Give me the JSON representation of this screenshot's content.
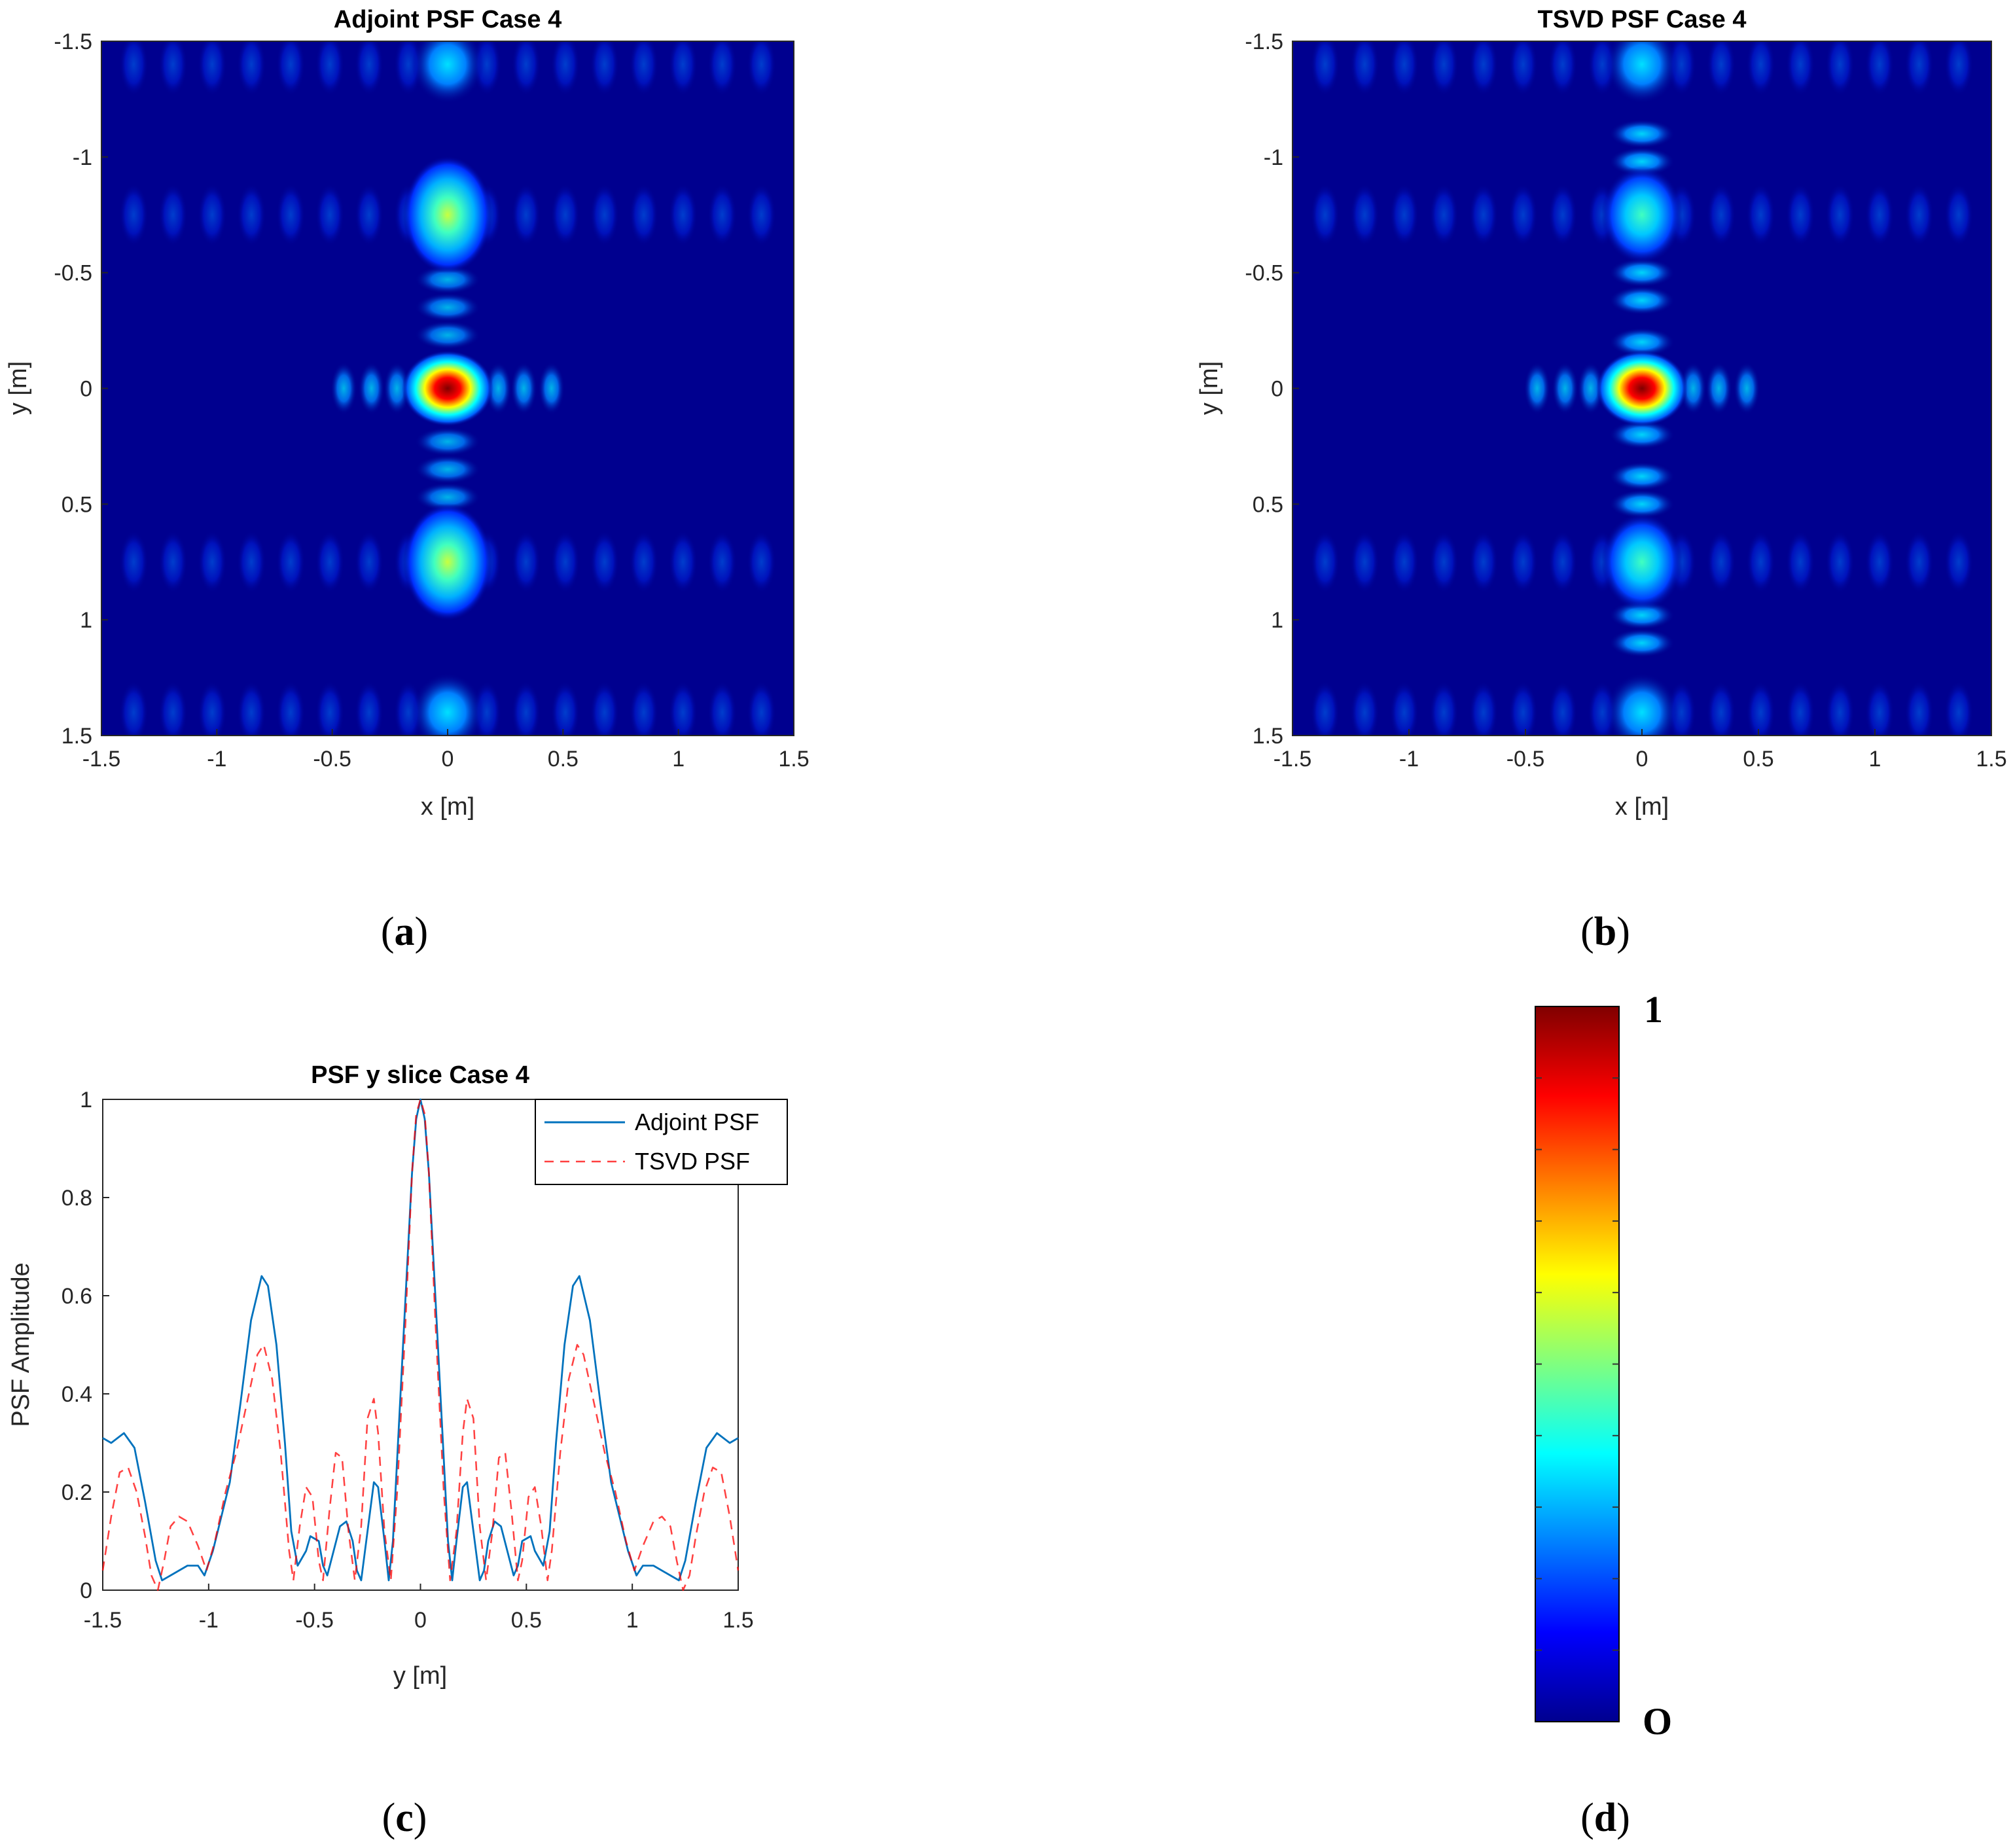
{
  "chart_data": [
    {
      "panel": "a",
      "type": "heatmap",
      "title": "Adjoint PSF Case 4",
      "xlabel": "x [m]",
      "ylabel": "y [m]",
      "xlim": [
        -1.5,
        1.5
      ],
      "ylim": [
        -1.5,
        1.5
      ],
      "xticks": [
        "-1.5",
        "-1",
        "-0.5",
        "0",
        "0.5",
        "1",
        "1.5"
      ],
      "yticks": [
        "-1.5",
        "-1",
        "-0.5",
        "0",
        "0.5",
        "1",
        "1.5"
      ],
      "colormap": "jet",
      "peaks": [
        {
          "x": 0,
          "y": 0,
          "value": 1.0
        },
        {
          "x": 0,
          "y": -0.75,
          "value": 0.64
        },
        {
          "x": 0,
          "y": 0.75,
          "value": 0.64
        },
        {
          "x": 0,
          "y": -1.4,
          "value": 0.32
        },
        {
          "x": 0,
          "y": 1.4,
          "value": 0.32
        }
      ]
    },
    {
      "panel": "b",
      "type": "heatmap",
      "title": "TSVD PSF Case 4",
      "xlabel": "x [m]",
      "ylabel": "y [m]",
      "xlim": [
        -1.5,
        1.5
      ],
      "ylim": [
        -1.5,
        1.5
      ],
      "xticks": [
        "-1.5",
        "-1",
        "-0.5",
        "0",
        "0.5",
        "1",
        "1.5"
      ],
      "yticks": [
        "-1.5",
        "-1",
        "-0.5",
        "0",
        "0.5",
        "1",
        "1.5"
      ],
      "colormap": "jet",
      "peaks": [
        {
          "x": 0,
          "y": 0,
          "value": 1.0
        },
        {
          "x": 0,
          "y": -0.75,
          "value": 0.5
        },
        {
          "x": 0,
          "y": 0.75,
          "value": 0.5
        },
        {
          "x": 0,
          "y": -1.4,
          "value": 0.25
        },
        {
          "x": 0,
          "y": 1.4,
          "value": 0.25
        }
      ]
    },
    {
      "panel": "c",
      "type": "line",
      "title": "PSF y slice Case 4",
      "xlabel": "y [m]",
      "ylabel": "PSF Amplitude",
      "xlim": [
        -1.5,
        1.5
      ],
      "ylim": [
        0,
        1
      ],
      "xticks": [
        "-1.5",
        "-1",
        "-0.5",
        "0",
        "0.5",
        "1",
        "1.5"
      ],
      "yticks": [
        "0",
        "0.2",
        "0.4",
        "0.6",
        "0.8",
        "1"
      ],
      "legend_position": "top-right",
      "series": [
        {
          "name": "Adjoint PSF",
          "color": "#0072BD",
          "style": "solid",
          "points": [
            [
              -1.5,
              0.31
            ],
            [
              -1.46,
              0.3
            ],
            [
              -1.4,
              0.32
            ],
            [
              -1.35,
              0.29
            ],
            [
              -1.3,
              0.18
            ],
            [
              -1.25,
              0.06
            ],
            [
              -1.22,
              0.02
            ],
            [
              -1.18,
              0.03
            ],
            [
              -1.1,
              0.05
            ],
            [
              -1.05,
              0.05
            ],
            [
              -1.02,
              0.03
            ],
            [
              -0.98,
              0.08
            ],
            [
              -0.9,
              0.22
            ],
            [
              -0.85,
              0.38
            ],
            [
              -0.8,
              0.55
            ],
            [
              -0.75,
              0.64
            ],
            [
              -0.72,
              0.62
            ],
            [
              -0.68,
              0.5
            ],
            [
              -0.64,
              0.3
            ],
            [
              -0.61,
              0.12
            ],
            [
              -0.58,
              0.05
            ],
            [
              -0.54,
              0.08
            ],
            [
              -0.52,
              0.11
            ],
            [
              -0.48,
              0.1
            ],
            [
              -0.46,
              0.05
            ],
            [
              -0.44,
              0.03
            ],
            [
              -0.41,
              0.08
            ],
            [
              -0.38,
              0.13
            ],
            [
              -0.35,
              0.14
            ],
            [
              -0.32,
              0.1
            ],
            [
              -0.3,
              0.04
            ],
            [
              -0.28,
              0.02
            ],
            [
              -0.25,
              0.12
            ],
            [
              -0.22,
              0.22
            ],
            [
              -0.2,
              0.21
            ],
            [
              -0.17,
              0.1
            ],
            [
              -0.15,
              0.02
            ],
            [
              -0.13,
              0.1
            ],
            [
              -0.1,
              0.35
            ],
            [
              -0.07,
              0.6
            ],
            [
              -0.04,
              0.85
            ],
            [
              -0.02,
              0.96
            ],
            [
              0,
              1.0
            ],
            [
              0.02,
              0.96
            ],
            [
              0.04,
              0.85
            ],
            [
              0.07,
              0.6
            ],
            [
              0.1,
              0.35
            ],
            [
              0.13,
              0.1
            ],
            [
              0.15,
              0.02
            ],
            [
              0.17,
              0.1
            ],
            [
              0.2,
              0.21
            ],
            [
              0.22,
              0.22
            ],
            [
              0.25,
              0.12
            ],
            [
              0.28,
              0.02
            ],
            [
              0.3,
              0.04
            ],
            [
              0.32,
              0.1
            ],
            [
              0.35,
              0.14
            ],
            [
              0.38,
              0.13
            ],
            [
              0.41,
              0.08
            ],
            [
              0.44,
              0.03
            ],
            [
              0.46,
              0.05
            ],
            [
              0.48,
              0.1
            ],
            [
              0.52,
              0.11
            ],
            [
              0.54,
              0.08
            ],
            [
              0.58,
              0.05
            ],
            [
              0.61,
              0.12
            ],
            [
              0.64,
              0.3
            ],
            [
              0.68,
              0.5
            ],
            [
              0.72,
              0.62
            ],
            [
              0.75,
              0.64
            ],
            [
              0.8,
              0.55
            ],
            [
              0.85,
              0.38
            ],
            [
              0.9,
              0.22
            ],
            [
              0.98,
              0.08
            ],
            [
              1.02,
              0.03
            ],
            [
              1.05,
              0.05
            ],
            [
              1.1,
              0.05
            ],
            [
              1.18,
              0.03
            ],
            [
              1.22,
              0.02
            ],
            [
              1.25,
              0.06
            ],
            [
              1.3,
              0.18
            ],
            [
              1.35,
              0.29
            ],
            [
              1.4,
              0.32
            ],
            [
              1.46,
              0.3
            ],
            [
              1.5,
              0.31
            ]
          ]
        },
        {
          "name": "TSVD PSF",
          "color": "#FF0000",
          "style": "dashed",
          "points": [
            [
              -1.5,
              0.04
            ],
            [
              -1.46,
              0.15
            ],
            [
              -1.42,
              0.24
            ],
            [
              -1.38,
              0.25
            ],
            [
              -1.34,
              0.2
            ],
            [
              -1.3,
              0.11
            ],
            [
              -1.27,
              0.03
            ],
            [
              -1.24,
              0.0
            ],
            [
              -1.21,
              0.06
            ],
            [
              -1.18,
              0.13
            ],
            [
              -1.14,
              0.15
            ],
            [
              -1.1,
              0.14
            ],
            [
              -1.05,
              0.09
            ],
            [
              -1.01,
              0.04
            ],
            [
              -0.97,
              0.1
            ],
            [
              -0.92,
              0.2
            ],
            [
              -0.87,
              0.28
            ],
            [
              -0.82,
              0.38
            ],
            [
              -0.77,
              0.48
            ],
            [
              -0.74,
              0.5
            ],
            [
              -0.7,
              0.43
            ],
            [
              -0.66,
              0.28
            ],
            [
              -0.62,
              0.08
            ],
            [
              -0.6,
              0.02
            ],
            [
              -0.57,
              0.13
            ],
            [
              -0.54,
              0.21
            ],
            [
              -0.51,
              0.19
            ],
            [
              -0.48,
              0.06
            ],
            [
              -0.46,
              0.02
            ],
            [
              -0.43,
              0.16
            ],
            [
              -0.4,
              0.28
            ],
            [
              -0.37,
              0.27
            ],
            [
              -0.34,
              0.12
            ],
            [
              -0.31,
              0.02
            ],
            [
              -0.28,
              0.13
            ],
            [
              -0.25,
              0.35
            ],
            [
              -0.22,
              0.39
            ],
            [
              -0.2,
              0.32
            ],
            [
              -0.17,
              0.12
            ],
            [
              -0.14,
              0.02
            ],
            [
              -0.11,
              0.2
            ],
            [
              -0.07,
              0.55
            ],
            [
              -0.04,
              0.85
            ],
            [
              -0.02,
              0.97
            ],
            [
              0,
              1.0
            ],
            [
              0.02,
              0.97
            ],
            [
              0.04,
              0.85
            ],
            [
              0.07,
              0.55
            ],
            [
              0.11,
              0.2
            ],
            [
              0.14,
              0.02
            ],
            [
              0.17,
              0.12
            ],
            [
              0.2,
              0.32
            ],
            [
              0.22,
              0.39
            ],
            [
              0.25,
              0.35
            ],
            [
              0.28,
              0.13
            ],
            [
              0.31,
              0.02
            ],
            [
              0.34,
              0.12
            ],
            [
              0.37,
              0.27
            ],
            [
              0.4,
              0.28
            ],
            [
              0.43,
              0.16
            ],
            [
              0.46,
              0.02
            ],
            [
              0.48,
              0.06
            ],
            [
              0.51,
              0.19
            ],
            [
              0.54,
              0.21
            ],
            [
              0.57,
              0.13
            ],
            [
              0.6,
              0.02
            ],
            [
              0.62,
              0.08
            ],
            [
              0.66,
              0.28
            ],
            [
              0.7,
              0.43
            ],
            [
              0.74,
              0.5
            ],
            [
              0.77,
              0.48
            ],
            [
              0.82,
              0.38
            ],
            [
              0.87,
              0.28
            ],
            [
              0.92,
              0.2
            ],
            [
              0.97,
              0.1
            ],
            [
              1.01,
              0.04
            ],
            [
              1.05,
              0.09
            ],
            [
              1.1,
              0.14
            ],
            [
              1.14,
              0.15
            ],
            [
              1.18,
              0.13
            ],
            [
              1.21,
              0.06
            ],
            [
              1.24,
              0.0
            ],
            [
              1.27,
              0.03
            ],
            [
              1.3,
              0.11
            ],
            [
              1.34,
              0.2
            ],
            [
              1.38,
              0.25
            ],
            [
              1.42,
              0.24
            ],
            [
              1.46,
              0.15
            ],
            [
              1.5,
              0.04
            ]
          ]
        }
      ]
    },
    {
      "panel": "d",
      "type": "colorbar",
      "colormap": "jet",
      "max_label": "1",
      "min_label": "O",
      "range": [
        0,
        1
      ]
    }
  ],
  "panel_labels": {
    "a": {
      "open": "(",
      "letter": "a",
      "close": ")"
    },
    "b": {
      "open": "(",
      "letter": "b",
      "close": ")"
    },
    "c": {
      "open": "(",
      "letter": "c",
      "close": ")"
    },
    "d": {
      "open": "(",
      "letter": "d",
      "close": ")"
    }
  },
  "colors": {
    "jet_stops": [
      "#00008F",
      "#0000FF",
      "#00FFFF",
      "#FFFF00",
      "#FF0000",
      "#800000"
    ],
    "background_blue": "#00008F"
  }
}
